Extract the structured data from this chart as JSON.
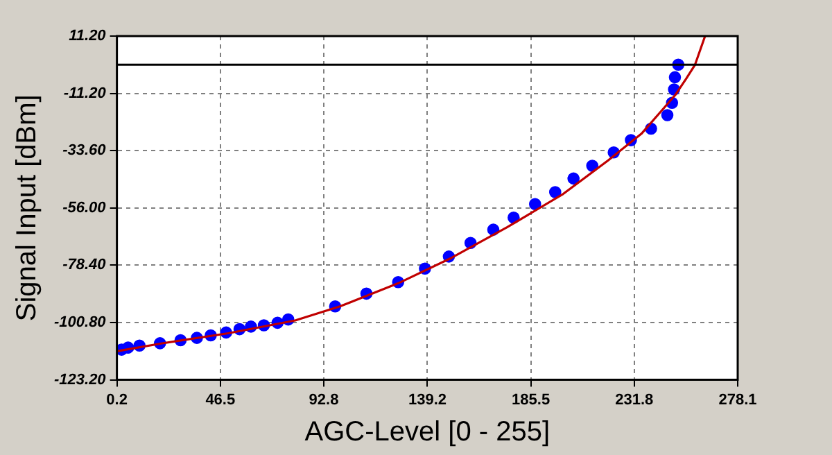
{
  "chart_data": {
    "type": "scatter",
    "xlabel": "AGC-Level [0 - 255]",
    "ylabel": "Signal Input [dBm]",
    "xlim": [
      0.2,
      278.1
    ],
    "xticks": [
      0.2,
      46.5,
      92.8,
      139.2,
      185.5,
      231.8,
      278.1
    ],
    "ylim": [
      -123.2,
      11.2
    ],
    "yticks": [
      {
        "value": -123.2,
        "label": "-123.20"
      },
      {
        "value": -100.8,
        "label": "-100.80"
      },
      {
        "value": -78.4,
        "label": "-78.40"
      },
      {
        "value": -56,
        "label": "-56.00"
      },
      {
        "value": -33.6,
        "label": "-33.60"
      },
      {
        "value": -11.2,
        "label": "-11.20"
      },
      {
        "value": 11.2,
        "label": "11.20"
      }
    ],
    "grid": true,
    "marker": "circle",
    "ref_lines": [
      {
        "axis": "y",
        "value": 0,
        "color": "#000000"
      }
    ],
    "series": [
      {
        "type": "scatter",
        "color": "#0000ff",
        "x": [
          2.3,
          5.2,
          10.3,
          19.5,
          28.7,
          36.0,
          42.2,
          49.1,
          55.1,
          60.2,
          66.0,
          72.1,
          76.9,
          97.9,
          111.9,
          126.1,
          138.1,
          148.8,
          158.5,
          168.7,
          177.8,
          187.4,
          196.4,
          204.6,
          213.0,
          222.6,
          230.3,
          239.3,
          246.6,
          248.7,
          249.6,
          250.0,
          251.5
        ],
        "values": [
          -111.4,
          -110.6,
          -109.8,
          -108.9,
          -107.7,
          -106.8,
          -105.8,
          -104.7,
          -103.4,
          -102.4,
          -101.9,
          -100.9,
          -99.6,
          -94.5,
          -89.5,
          -85.0,
          -79.7,
          -75.0,
          -69.7,
          -64.5,
          -59.8,
          -54.5,
          -49.8,
          -44.5,
          -39.5,
          -34.3,
          -29.5,
          -25.0,
          -19.7,
          -14.9,
          -9.7,
          -4.9,
          0.0
        ]
      },
      {
        "type": "line",
        "color": "#c00000",
        "marker": "none",
        "x": [
          0.2,
          20,
          50,
          80,
          100,
          126,
          150,
          175,
          200,
          220,
          235,
          245,
          250,
          255,
          259,
          263.5
        ],
        "values": [
          -112,
          -109,
          -105,
          -100,
          -94.5,
          -85.5,
          -75.5,
          -63.5,
          -50.5,
          -37.5,
          -27,
          -17,
          -12,
          -5.5,
          0,
          11.2
        ]
      }
    ]
  }
}
